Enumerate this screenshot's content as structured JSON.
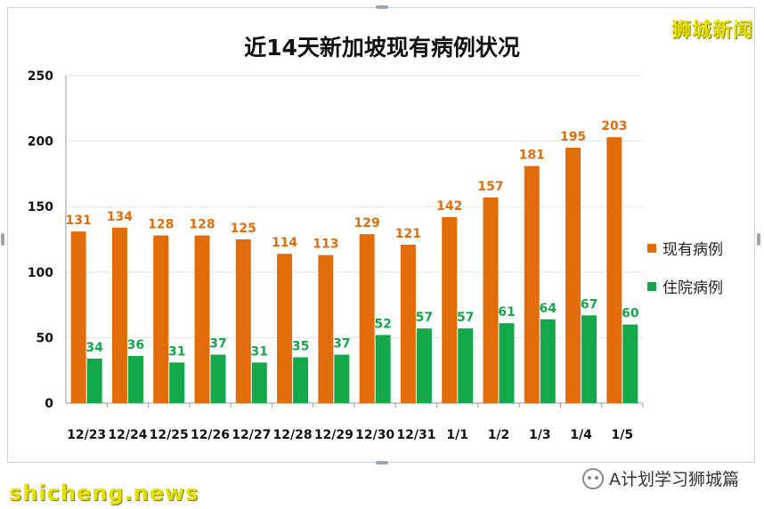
{
  "chart_data": {
    "type": "bar",
    "title": "近14天新加坡现有病例状况",
    "categories": [
      "12/23",
      "12/24",
      "12/25",
      "12/26",
      "12/27",
      "12/28",
      "12/29",
      "12/30",
      "12/31",
      "1/1",
      "1/2",
      "1/3",
      "1/4",
      "1/5"
    ],
    "series": [
      {
        "name": "现有病例",
        "color": "#e36c0a",
        "values": [
          131,
          134,
          128,
          128,
          125,
          114,
          113,
          129,
          121,
          142,
          157,
          181,
          195,
          203
        ]
      },
      {
        "name": "住院病例",
        "color": "#13a84a",
        "values": [
          34,
          36,
          31,
          37,
          31,
          35,
          37,
          52,
          57,
          57,
          61,
          64,
          67,
          60
        ]
      }
    ],
    "ylim": [
      0,
      250
    ],
    "yticks": [
      0,
      50,
      100,
      150,
      200,
      250
    ],
    "grid": true,
    "legend": "right"
  },
  "watermark_top": "狮城新闻",
  "watermark_bottom": "shicheng.news",
  "source_account": "A计划学习狮城篇"
}
